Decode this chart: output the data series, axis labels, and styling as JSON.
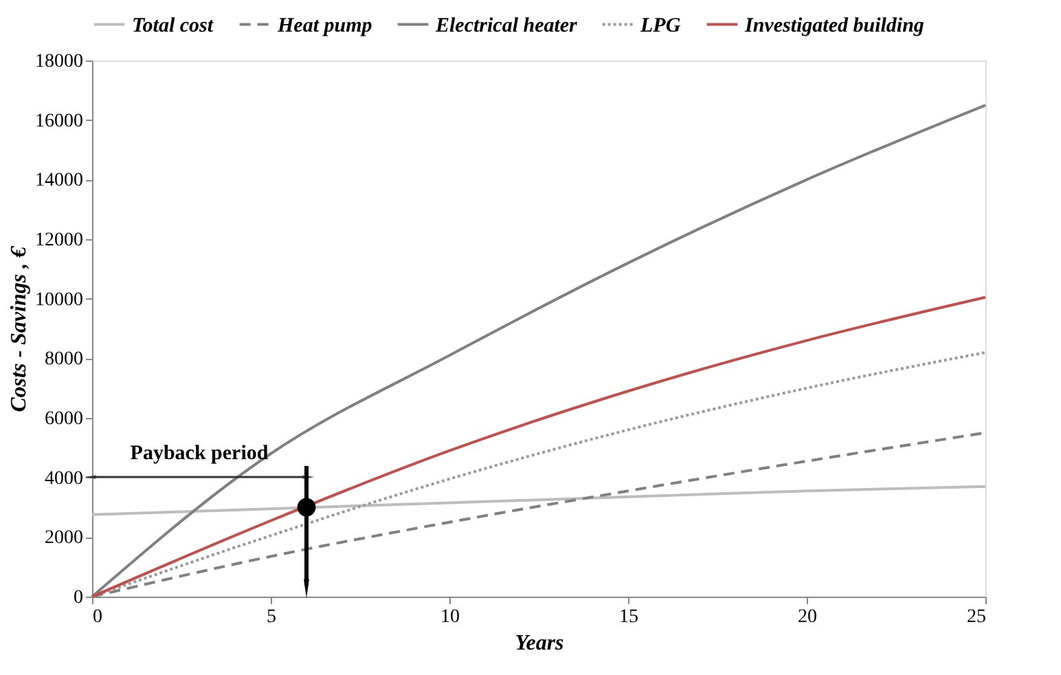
{
  "chart_data": {
    "type": "line",
    "xlabel": "Years",
    "ylabel": "Costs - Savings , €",
    "x": [
      0,
      5,
      10,
      15,
      20,
      25
    ],
    "series": [
      {
        "name": "Total cost",
        "color": "#bdbdbd",
        "line_style": "solid",
        "values": [
          2750,
          2950,
          3150,
          3350,
          3550,
          3700
        ]
      },
      {
        "name": "Heat pump",
        "color": "#808080",
        "line_style": "dashed",
        "values": [
          0,
          1350,
          2500,
          3550,
          4550,
          5500
        ]
      },
      {
        "name": "Electrical heater",
        "color": "#808080",
        "line_style": "solid",
        "values": [
          0,
          4800,
          8100,
          11200,
          14000,
          16500
        ]
      },
      {
        "name": "LPG",
        "color": "#9a9a9a",
        "line_style": "dotted",
        "values": [
          0,
          2050,
          3950,
          5600,
          7000,
          8200
        ]
      },
      {
        "name": "Investigated building",
        "color": "#c0504d",
        "line_style": "solid",
        "values": [
          0,
          2550,
          4900,
          6900,
          8600,
          10050
        ]
      },
      {
        "type": "scatter",
        "color": "#000000",
        "marker": "circle",
        "x": [
          6
        ],
        "values": [
          3000
        ]
      }
    ],
    "annotations": [
      "Payback period"
    ],
    "xlim": [
      0,
      25
    ],
    "xticks": [
      0,
      5,
      10,
      15,
      20,
      25
    ],
    "ylim": [
      0,
      18000
    ],
    "yticks": [
      0,
      2000,
      4000,
      6000,
      8000,
      10000,
      12000,
      14000,
      16000,
      18000
    ],
    "grid": false,
    "legend": "top"
  }
}
